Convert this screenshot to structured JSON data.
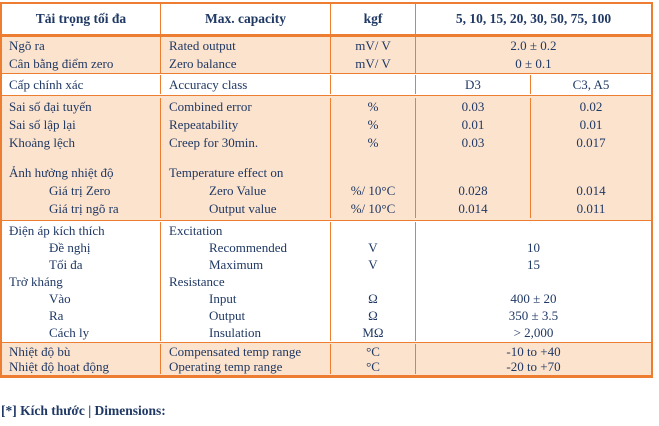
{
  "colors": {
    "border_orange": "#ED7D31",
    "fill_peach": "#FBE3CD",
    "text_navy": "#1F3864"
  },
  "table": {
    "header": {
      "vn": "Tải trọng tối đa",
      "en": "Max. capacity",
      "unit": "kgf",
      "values": "5, 10, 15, 20, 30, 50, 75, 100"
    },
    "groups": [
      {
        "bg": "peach",
        "merged": true,
        "line_h": 18,
        "rows": [
          {
            "vn": "Ngõ ra",
            "en": "Rated output",
            "unit": "mV/ V",
            "v1": "2.0 ± 0.2"
          },
          {
            "vn": "Cân bằng điểm zero",
            "en": "Zero balance",
            "unit": "mV/ V",
            "v1": "0 ± 0.1"
          }
        ]
      },
      {
        "bg": "white",
        "merged": false,
        "line_h": 19,
        "rows": [
          {
            "vn": "Cấp chính xác",
            "en": "Accuracy class",
            "unit": "",
            "v1": "D3",
            "v2": "C3, A5"
          }
        ]
      },
      {
        "bg": "peach",
        "merged": false,
        "line_h": 18,
        "spacer_h": 12,
        "rows": [
          {
            "vn": "Sai số đại tuyến",
            "en": "Combined error",
            "unit": "%",
            "v1": "0.03",
            "v2": "0.02"
          },
          {
            "vn": "Sai số lập lại",
            "en": "Repeatability",
            "unit": "%",
            "v1": "0.01",
            "v2": "0.01"
          },
          {
            "vn": "Khoảng lệch",
            "en": "Creep for 30min.",
            "unit": "%",
            "v1": "0.03",
            "v2": "0.017"
          },
          {
            "spacer": true
          },
          {
            "vn": "Ảnh hưởng nhiệt độ",
            "en": "Temperature effect on",
            "unit": "",
            "v1": "",
            "v2": ""
          },
          {
            "vn": "Giá trị Zero",
            "en": "Zero Value",
            "unit": "%/ 10°C",
            "v1": "0.028",
            "v2": "0.014",
            "indent": true
          },
          {
            "vn": "Giá trị ngõ ra",
            "en": "Output value",
            "unit": "%/ 10°C",
            "v1": "0.014",
            "v2": "0.011",
            "indent": true
          }
        ]
      },
      {
        "bg": "white",
        "merged": true,
        "line_h": 17,
        "rows": [
          {
            "vn": "Điện áp kích thích",
            "en": "Excitation",
            "unit": "",
            "v1": ""
          },
          {
            "vn": "Đề nghị",
            "en": "Recommended",
            "unit": "V",
            "v1": "10",
            "indent": true
          },
          {
            "vn": "Tối đa",
            "en": "Maximum",
            "unit": "V",
            "v1": "15",
            "indent": true
          },
          {
            "vn": "Trở kháng",
            "en": "Resistance",
            "unit": "",
            "v1": ""
          },
          {
            "vn": "Vào",
            "en": "Input",
            "unit": "Ω",
            "v1": "400 ± 20",
            "indent": true
          },
          {
            "vn": "Ra",
            "en": "Output",
            "unit": "Ω",
            "v1": "350 ± 3.5",
            "indent": true
          },
          {
            "vn": "Cách ly",
            "en": "Insulation",
            "unit": "MΩ",
            "v1": "> 2,000",
            "indent": true
          }
        ]
      },
      {
        "bg": "peach",
        "merged": true,
        "line_h": 15,
        "rows": [
          {
            "vn": "Nhiệt độ bù",
            "en": "Compensated temp range",
            "unit": "°C",
            "v1": "-10 to +40"
          },
          {
            "vn": "Nhiệt độ hoạt động",
            "en": "Operating temp range",
            "unit": "°C",
            "v1": "-20 to +70"
          }
        ]
      }
    ]
  },
  "footer": {
    "text": "[*] Kích thước | Dimensions:"
  }
}
